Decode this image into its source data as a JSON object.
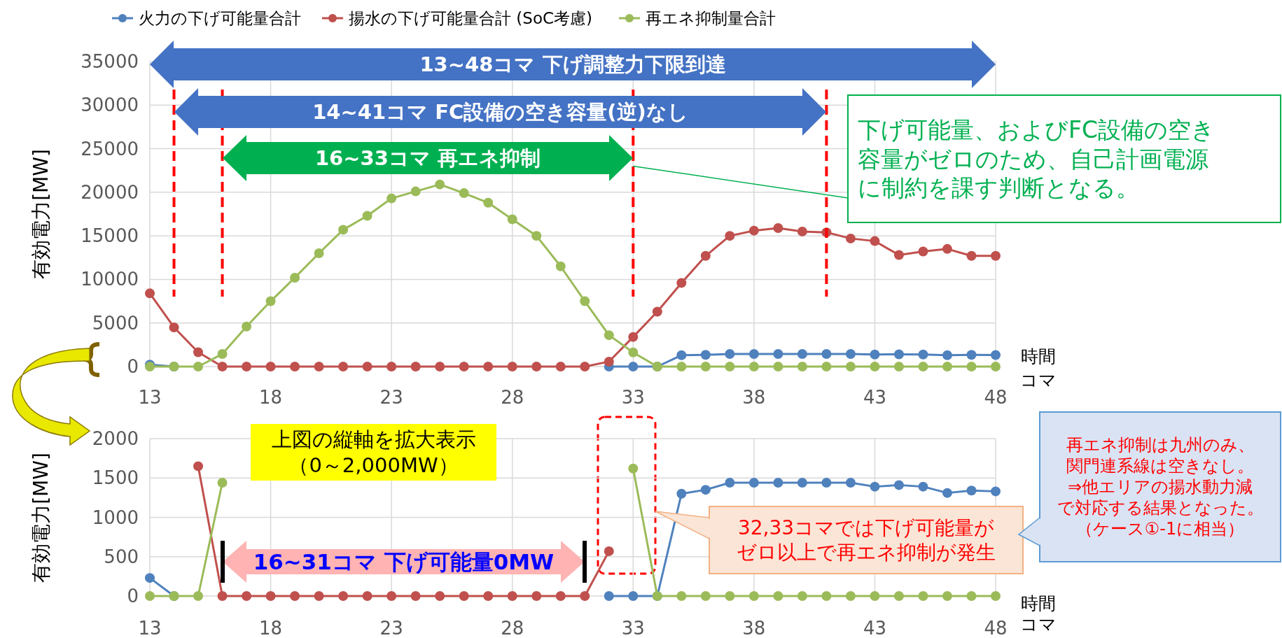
{
  "chart_data": [
    {
      "type": "line",
      "ylabel": "有効電力[MW]",
      "xlabel": "時間コマ",
      "x": [
        13,
        14,
        15,
        16,
        17,
        18,
        19,
        20,
        21,
        22,
        23,
        24,
        25,
        26,
        27,
        28,
        29,
        30,
        31,
        32,
        33,
        34,
        35,
        36,
        37,
        38,
        39,
        40,
        41,
        42,
        43,
        44,
        45,
        46,
        47,
        48
      ],
      "series": [
        {
          "name": "火力の下げ可能量合計",
          "color": "#4f81bd",
          "values": [
            230,
            0,
            null,
            null,
            null,
            null,
            null,
            null,
            null,
            null,
            null,
            null,
            null,
            null,
            null,
            null,
            null,
            null,
            null,
            0,
            0,
            0,
            1300,
            1350,
            1440,
            1440,
            1440,
            1440,
            1440,
            1440,
            1390,
            1410,
            1390,
            1310,
            1340,
            1330
          ]
        },
        {
          "name": "揚水の下げ可能量合計 (SoC考慮)",
          "color": "#c0504d",
          "values": [
            8400,
            4500,
            1650,
            0,
            0,
            0,
            0,
            0,
            0,
            0,
            0,
            0,
            0,
            0,
            0,
            0,
            0,
            0,
            0,
            570,
            3400,
            6300,
            9600,
            12700,
            15000,
            15600,
            15900,
            15500,
            15400,
            14700,
            14400,
            12800,
            13200,
            13500,
            12700,
            12700
          ]
        },
        {
          "name": "再エネ抑制量合計",
          "color": "#9bbb59",
          "values": [
            0,
            0,
            0,
            1440,
            4600,
            7500,
            10200,
            13000,
            15700,
            17300,
            19300,
            20100,
            20900,
            19900,
            18800,
            16900,
            15000,
            11500,
            7500,
            3600,
            1620,
            0,
            0,
            0,
            0,
            0,
            0,
            0,
            0,
            0,
            0,
            0,
            0,
            0,
            0,
            0
          ]
        }
      ],
      "xlim": [
        13,
        48
      ],
      "xticks": [
        13,
        18,
        23,
        28,
        33,
        38,
        43,
        48
      ],
      "ylim": [
        0,
        35000
      ],
      "yticks": [
        0,
        5000,
        10000,
        15000,
        20000,
        25000,
        30000,
        35000
      ],
      "grid": true,
      "legend": "top",
      "marker": "circle",
      "ref_lines": [
        {
          "axis": "x",
          "value": 14,
          "color": "#ff0000",
          "line_style": "dashed"
        },
        {
          "axis": "x",
          "value": 16,
          "color": "#ff0000",
          "line_style": "dashed"
        },
        {
          "axis": "x",
          "value": 33,
          "color": "#ff0000",
          "line_style": "dashed"
        },
        {
          "axis": "x",
          "value": 41,
          "color": "#ff0000",
          "line_style": "dashed"
        }
      ],
      "annotations": [
        "13~48コマ 下げ調整力下限到達",
        "14~41コマ FC設備の空き容量(逆)なし",
        "16~33コマ 再エネ抑制",
        {
          "text": "下げ可能量、およびFC設備の空き容量がゼロのため、自己計画電源に制約を課す判断となる。",
          "x": 33,
          "y": 23000
        }
      ]
    },
    {
      "type": "line",
      "ylabel": "有効電力[MW]",
      "xlabel": "時間コマ",
      "x": [
        13,
        14,
        15,
        16,
        17,
        18,
        19,
        20,
        21,
        22,
        23,
        24,
        25,
        26,
        27,
        28,
        29,
        30,
        31,
        32,
        33,
        34,
        35,
        36,
        37,
        38,
        39,
        40,
        41,
        42,
        43,
        44,
        45,
        46,
        47,
        48
      ],
      "series": [
        {
          "color": "#4f81bd",
          "values": [
            230,
            0,
            null,
            null,
            null,
            null,
            null,
            null,
            null,
            null,
            null,
            null,
            null,
            null,
            null,
            null,
            null,
            null,
            null,
            0,
            0,
            0,
            1300,
            1350,
            1440,
            1440,
            1440,
            1440,
            1440,
            1440,
            1390,
            1410,
            1390,
            1310,
            1340,
            1330
          ]
        },
        {
          "color": "#c0504d",
          "values": [
            null,
            null,
            1650,
            0,
            0,
            0,
            0,
            0,
            0,
            0,
            0,
            0,
            0,
            0,
            0,
            0,
            0,
            0,
            0,
            570,
            null,
            null,
            null,
            null,
            null,
            null,
            null,
            null,
            null,
            null,
            null,
            null,
            null,
            null,
            null,
            null
          ]
        },
        {
          "color": "#9bbb59",
          "values": [
            0,
            0,
            0,
            1440,
            null,
            null,
            null,
            null,
            null,
            null,
            null,
            null,
            null,
            null,
            null,
            null,
            null,
            null,
            null,
            null,
            1620,
            0,
            0,
            0,
            0,
            0,
            0,
            0,
            0,
            0,
            0,
            0,
            0,
            0,
            0,
            0
          ]
        }
      ],
      "xlim": [
        13,
        48
      ],
      "xticks": [
        13,
        18,
        23,
        28,
        33,
        38,
        43,
        48
      ],
      "ylim": [
        0,
        2000
      ],
      "yticks": [
        0,
        500,
        1000,
        1500,
        2000
      ],
      "grid": true,
      "marker": "circle",
      "annotations": [
        "16~31コマ 下げ可能量0MW",
        "上図の縦軸を拡大表示（0～2,000MW）",
        "32,33コマでは下げ可能量がゼロ以上で再エネ抑制が発生",
        "再エネ抑制は九州のみ、関門連系線は空きなし。⇒他エリアの揚水動力減で対応する結果となった。（ケース①-1に相当）"
      ]
    }
  ]
}
